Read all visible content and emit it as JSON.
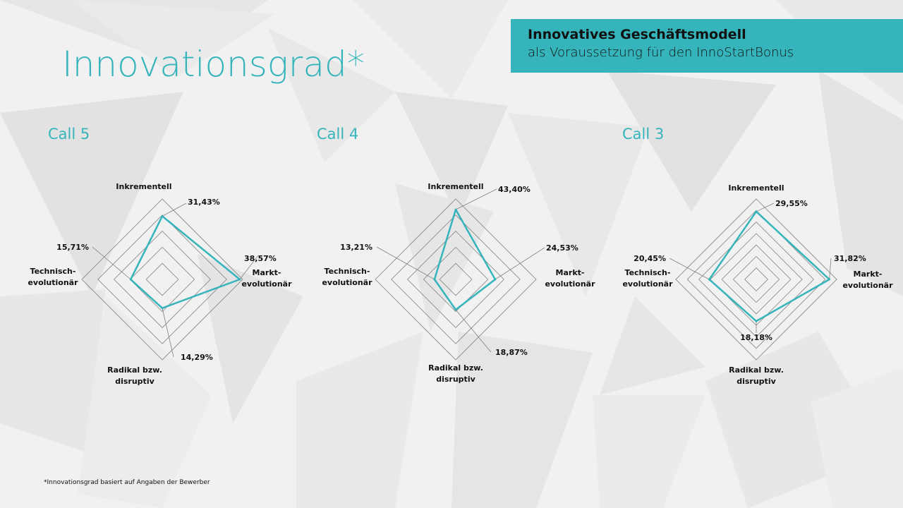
{
  "title": "Innovationsgrad*",
  "banner": {
    "line1": "Innovatives Geschäftsmodell",
    "line2": "als Voraussetzung für den InnoStartBonus"
  },
  "footnote": "*Innovationsgrad basiert auf Angaben der Bewerber",
  "colors": {
    "accent": "#35b5bb",
    "grid": "#808080"
  },
  "chart_data": [
    {
      "type": "radar",
      "title": "Call 5",
      "categories": [
        "Inkrementell",
        "Markt-evolutionär",
        "Radikal bzw. disruptiv",
        "Technisch-evolutionär"
      ],
      "category_lines": [
        [
          "Inkrementell"
        ],
        [
          "Markt-",
          "evolutionär"
        ],
        [
          "Radikal bzw.",
          "disruptiv"
        ],
        [
          "Technisch-",
          "evolutionär"
        ]
      ],
      "values": [
        31.43,
        38.57,
        14.29,
        15.71
      ],
      "value_labels": [
        "31,43%",
        "38,57%",
        "14,29%",
        "15,71%"
      ],
      "rmax": 40,
      "grid_rings": 5
    },
    {
      "type": "radar",
      "title": "Call 4",
      "categories": [
        "Inkrementell",
        "Markt-evolutionär",
        "Radikal bzw. disruptiv",
        "Technisch-evolutionär"
      ],
      "category_lines": [
        [
          "Inkrementell"
        ],
        [
          "Markt-",
          "evolutionär"
        ],
        [
          "Radikal bzw.",
          "disruptiv"
        ],
        [
          "Technisch-",
          "evolutionär"
        ]
      ],
      "values": [
        43.4,
        24.53,
        18.87,
        13.21
      ],
      "value_labels": [
        "43,40%",
        "24,53%",
        "18,87%",
        "13,21%"
      ],
      "rmax": 50,
      "grid_rings": 5
    },
    {
      "type": "radar",
      "title": "Call 3",
      "categories": [
        "Inkrementell",
        "Markt-evolutionär",
        "Radikal bzw. disruptiv",
        "Technisch-evolutionär"
      ],
      "category_lines": [
        [
          "Inkrementell"
        ],
        [
          "Markt-",
          "evolutionär"
        ],
        [
          "Radikal bzw.",
          "disruptiv"
        ],
        [
          "Technisch-",
          "evolutionär"
        ]
      ],
      "values": [
        29.55,
        31.82,
        18.18,
        20.45
      ],
      "value_labels": [
        "29,55%",
        "31,82%",
        "18,18%",
        "20,45%"
      ],
      "rmax": 35,
      "grid_rings": 7
    }
  ]
}
